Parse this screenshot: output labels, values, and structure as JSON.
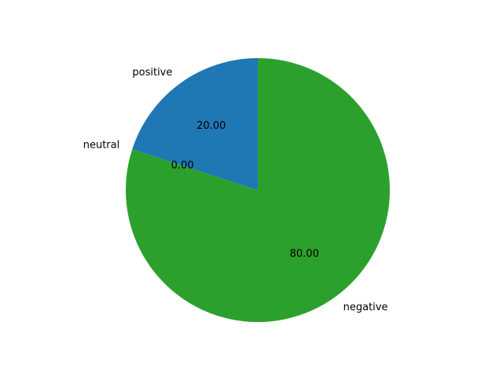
{
  "chart_data": {
    "type": "pie",
    "categories": [
      "positive",
      "neutral",
      "negative"
    ],
    "values": [
      20.0,
      0.0,
      80.0
    ],
    "value_labels": [
      "20.00",
      "0.00",
      "80.00"
    ],
    "colors": [
      "#1f77b4",
      "#ff7f0e",
      "#2ca02c"
    ],
    "title": "",
    "start_angle_deg": 90,
    "direction": "counterclockwise"
  }
}
